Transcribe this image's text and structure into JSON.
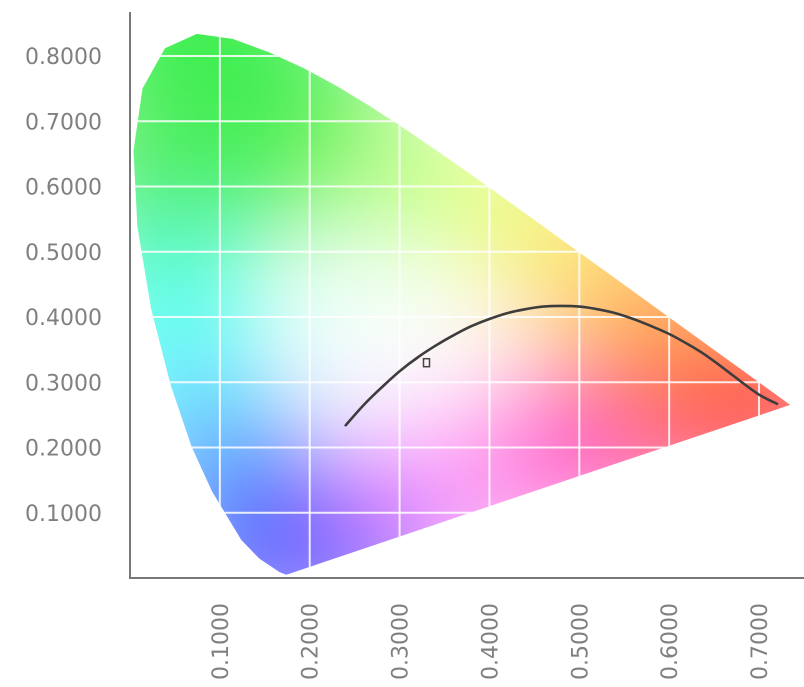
{
  "chart_data": {
    "type": "scatter",
    "title": "",
    "xlabel": "",
    "ylabel": "",
    "xlim": [
      0.0,
      0.74
    ],
    "ylim": [
      0.0,
      0.84
    ],
    "grid": true,
    "x_ticks": [
      "0.1000",
      "0.2000",
      "0.3000",
      "0.4000",
      "0.5000",
      "0.6000",
      "0.7000"
    ],
    "x_tick_values": [
      0.1,
      0.2,
      0.3,
      0.4,
      0.5,
      0.6,
      0.7
    ],
    "y_ticks": [
      "0.1000",
      "0.2000",
      "0.3000",
      "0.4000",
      "0.5000",
      "0.6000",
      "0.7000",
      "0.8000"
    ],
    "y_tick_values": [
      0.1,
      0.2,
      0.3,
      0.4,
      0.5,
      0.6,
      0.7,
      0.8
    ],
    "gamut_boundary": [
      [
        0.1741,
        0.005
      ],
      [
        0.1666,
        0.0089
      ],
      [
        0.144,
        0.0297
      ],
      [
        0.1241,
        0.0578
      ],
      [
        0.0913,
        0.1327
      ],
      [
        0.0687,
        0.2007
      ],
      [
        0.0454,
        0.295
      ],
      [
        0.0235,
        0.4127
      ],
      [
        0.0082,
        0.5384
      ],
      [
        0.0039,
        0.6548
      ],
      [
        0.0139,
        0.7502
      ],
      [
        0.0389,
        0.812
      ],
      [
        0.0743,
        0.8338
      ],
      [
        0.1142,
        0.8262
      ],
      [
        0.1547,
        0.8059
      ],
      [
        0.1929,
        0.7816
      ],
      [
        0.2296,
        0.7543
      ],
      [
        0.2658,
        0.7243
      ],
      [
        0.3016,
        0.6923
      ],
      [
        0.3373,
        0.6589
      ],
      [
        0.3731,
        0.6245
      ],
      [
        0.4087,
        0.5896
      ],
      [
        0.4441,
        0.5547
      ],
      [
        0.4788,
        0.5202
      ],
      [
        0.5125,
        0.4866
      ],
      [
        0.5448,
        0.4544
      ],
      [
        0.5752,
        0.4242
      ],
      [
        0.6029,
        0.3965
      ],
      [
        0.627,
        0.3725
      ],
      [
        0.6482,
        0.3514
      ],
      [
        0.6658,
        0.334
      ],
      [
        0.6915,
        0.3083
      ],
      [
        0.7079,
        0.292
      ],
      [
        0.7347,
        0.2653
      ]
    ],
    "planckian_locus": [
      [
        0.24,
        0.234
      ],
      [
        0.26,
        0.265
      ],
      [
        0.28,
        0.292
      ],
      [
        0.3,
        0.317
      ],
      [
        0.32,
        0.338
      ],
      [
        0.34,
        0.356
      ],
      [
        0.36,
        0.372
      ],
      [
        0.38,
        0.386
      ],
      [
        0.4,
        0.397
      ],
      [
        0.42,
        0.406
      ],
      [
        0.44,
        0.412
      ],
      [
        0.46,
        0.416
      ],
      [
        0.48,
        0.417
      ],
      [
        0.5,
        0.416
      ],
      [
        0.52,
        0.412
      ],
      [
        0.54,
        0.406
      ],
      [
        0.56,
        0.397
      ],
      [
        0.58,
        0.386
      ],
      [
        0.6,
        0.374
      ],
      [
        0.62,
        0.359
      ],
      [
        0.64,
        0.342
      ],
      [
        0.66,
        0.322
      ],
      [
        0.68,
        0.301
      ],
      [
        0.7,
        0.281
      ],
      [
        0.72,
        0.267
      ]
    ],
    "marker": {
      "x": 0.33,
      "y": 0.33
    }
  }
}
